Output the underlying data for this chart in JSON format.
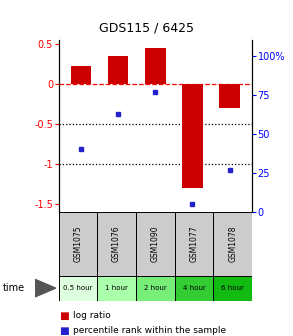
{
  "title": "GDS115 / 6425",
  "samples": [
    "GSM1075",
    "GSM1076",
    "GSM1090",
    "GSM1077",
    "GSM1078"
  ],
  "time_labels": [
    "0.5 hour",
    "1 hour",
    "2 hour",
    "4 hour",
    "6 hour"
  ],
  "time_colors": [
    "#ddffdd",
    "#aaffaa",
    "#77ee77",
    "#33cc33",
    "#11bb11"
  ],
  "log_ratios": [
    0.23,
    0.35,
    0.45,
    -1.3,
    -0.3
  ],
  "percentile_ranks": [
    40,
    63,
    77,
    5,
    27
  ],
  "bar_color": "#cc0000",
  "dot_color": "#2222cc",
  "ylim_left": [
    -1.6,
    0.55
  ],
  "ylim_right": [
    0,
    110
  ],
  "yticks_left": [
    0.5,
    0.0,
    -0.5,
    -1.0,
    -1.5
  ],
  "ytick_right_vals": [
    100,
    75,
    50,
    25,
    0
  ],
  "ytick_right_labels": [
    "100%",
    "75",
    "50",
    "25",
    "0"
  ],
  "bg_color": "#ffffff"
}
